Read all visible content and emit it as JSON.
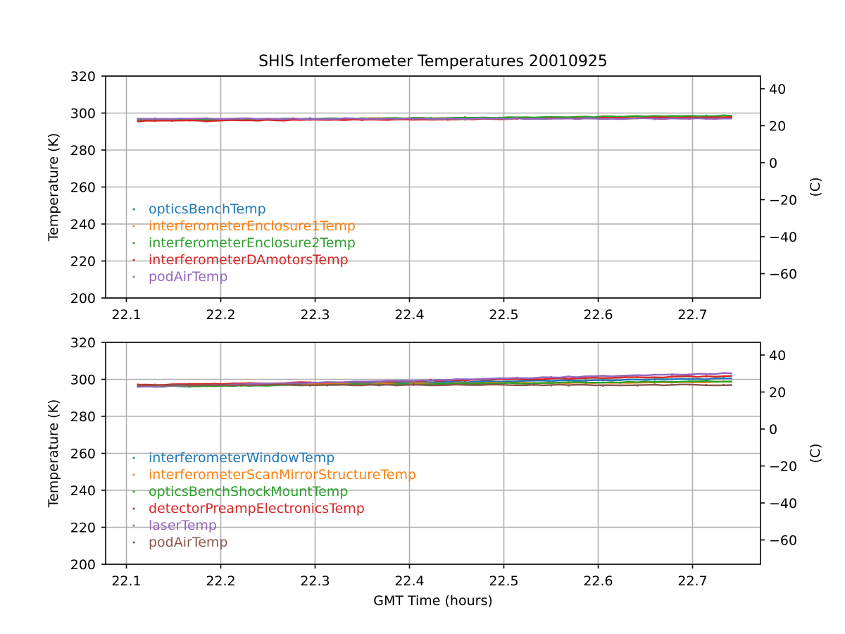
{
  "chart_data": [
    {
      "type": "scatter",
      "title": "SHIS Interferometer Temperatures 20010925",
      "xlabel": "",
      "ylabel": "Temperature (K)",
      "ylabel_right": "(C)",
      "xlim": [
        22.078,
        22.772
      ],
      "ylim": [
        200,
        320
      ],
      "ylim_right": [
        -73.15,
        46.85
      ],
      "x_ticks": [
        "22.1",
        "22.2",
        "22.3",
        "22.4",
        "22.5",
        "22.6",
        "22.7"
      ],
      "y_ticks": [
        "200",
        "220",
        "240",
        "260",
        "280",
        "300",
        "320"
      ],
      "y_ticks_right": [
        "−60",
        "−40",
        "−20",
        "0",
        "20",
        "40"
      ],
      "grid": true,
      "legend_position": "lower-left",
      "x_start": 22.112,
      "x_end": 22.742,
      "series": [
        {
          "name": "opticsBenchTemp",
          "color": "#1f77b4",
          "y_start": 296.6,
          "y_end": 297.6
        },
        {
          "name": "interferometerEnclosure1Temp",
          "color": "#ff7f0e",
          "y_start": 296.3,
          "y_end": 298.1
        },
        {
          "name": "interferometerEnclosure2Temp",
          "color": "#2ca02c",
          "y_start": 296.1,
          "y_end": 298.6
        },
        {
          "name": "interferometerDAmotorsTemp",
          "color": "#d62728",
          "y_start": 295.6,
          "y_end": 297.7
        },
        {
          "name": "podAirTemp",
          "color": "#9467bd",
          "y_start": 296.9,
          "y_end": 297.0
        }
      ]
    },
    {
      "type": "scatter",
      "title": "",
      "xlabel": "GMT Time (hours)",
      "ylabel": "Temperature (K)",
      "ylabel_right": "(C)",
      "xlim": [
        22.078,
        22.772
      ],
      "ylim": [
        200,
        320
      ],
      "ylim_right": [
        -73.15,
        46.85
      ],
      "x_ticks": [
        "22.1",
        "22.2",
        "22.3",
        "22.4",
        "22.5",
        "22.6",
        "22.7"
      ],
      "y_ticks": [
        "200",
        "220",
        "240",
        "260",
        "280",
        "300",
        "320"
      ],
      "y_ticks_right": [
        "−60",
        "−40",
        "−20",
        "0",
        "20",
        "40"
      ],
      "grid": true,
      "legend_position": "lower-left",
      "x_start": 22.112,
      "x_end": 22.742,
      "series": [
        {
          "name": "interferometerWindowTemp",
          "color": "#1f77b4",
          "y_start": 296.4,
          "y_end": 300.4
        },
        {
          "name": "interferometerScanMirrorStructureTemp",
          "color": "#ff7f0e",
          "y_start": 296.9,
          "y_end": 298.6
        },
        {
          "name": "opticsBenchShockMountTemp",
          "color": "#2ca02c",
          "y_start": 296.1,
          "y_end": 299.0
        },
        {
          "name": "detectorPreampElectronicsTemp",
          "color": "#d62728",
          "y_start": 296.9,
          "y_end": 301.8
        },
        {
          "name": "laserTemp",
          "color": "#9467bd",
          "y_start": 296.0,
          "y_end": 303.3
        },
        {
          "name": "podAirTemp",
          "color": "#8c564b",
          "y_start": 296.9,
          "y_end": 297.0
        }
      ]
    }
  ]
}
